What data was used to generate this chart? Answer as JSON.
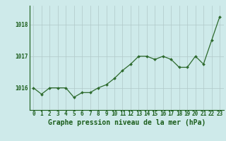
{
  "x": [
    0,
    1,
    2,
    3,
    4,
    5,
    6,
    7,
    8,
    9,
    10,
    11,
    12,
    13,
    14,
    15,
    16,
    17,
    18,
    19,
    20,
    21,
    22,
    23
  ],
  "y": [
    1016.0,
    1015.8,
    1016.0,
    1016.0,
    1016.0,
    1015.7,
    1015.85,
    1015.85,
    1016.0,
    1016.1,
    1016.3,
    1016.55,
    1016.75,
    1017.0,
    1017.0,
    1016.9,
    1017.0,
    1016.9,
    1016.65,
    1016.65,
    1017.0,
    1016.75,
    1017.5,
    1018.25
  ],
  "line_color": "#2d6a2d",
  "marker": "D",
  "marker_size": 2.0,
  "bg_color": "#ceeaea",
  "grid_color": "#b0c8c8",
  "xlabel": "Graphe pression niveau de la mer (hPa)",
  "xlabel_fontsize": 7.0,
  "yticks": [
    1016,
    1017,
    1018
  ],
  "ylim": [
    1015.3,
    1018.6
  ],
  "xlim": [
    -0.5,
    23.5
  ],
  "tick_label_color": "#1a5c1a",
  "tick_fontsize": 5.5,
  "linewidth": 0.9
}
